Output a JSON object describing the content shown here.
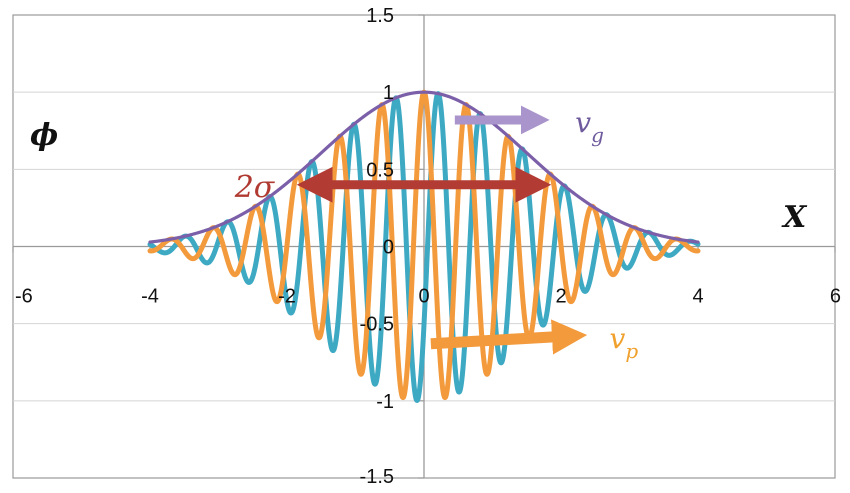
{
  "chart_data": {
    "type": "line",
    "title": "",
    "xlabel": "X",
    "ylabel": "ϕ",
    "xlim": [
      -6,
      6
    ],
    "ylim": [
      -1.5,
      1.5
    ],
    "x_ticks": [
      "-6",
      "-4",
      "-2",
      "0",
      "2",
      "4",
      "6"
    ],
    "y_ticks": [
      "1.5",
      "1",
      "0.5",
      "0",
      "-0.5",
      "-1",
      "-1.5"
    ],
    "grid": true,
    "series": [
      {
        "name": "",
        "kind": "envelope",
        "formula": "exp(-x^2/(2*sigma^2))",
        "sigma": 1.5,
        "x_range": [
          -4,
          4
        ],
        "color": "#7b5fa8"
      },
      {
        "name": "",
        "kind": "carrier-cos",
        "formula": "exp(-x^2/(2*sigma^2))*cos(k*x)",
        "sigma": 1.5,
        "k": 10.2,
        "x_range": [
          -4,
          4
        ],
        "color": "#f39a3c"
      },
      {
        "name": "",
        "kind": "carrier-shifted",
        "formula": "exp(-x^2/(2*sigma^2))*cos(k*x - 2.1)",
        "sigma": 1.5,
        "k": 10.2,
        "x_range": [
          -4,
          4
        ],
        "color": "#3da9c3"
      }
    ],
    "annotations": [
      {
        "name": "group-velocity",
        "text": "v",
        "subscript": "g",
        "arrow_from": [
          0.45,
          0.82
        ],
        "arrow_to": [
          1.8,
          0.82
        ],
        "color": "#a995cb"
      },
      {
        "name": "phase-velocity",
        "text": "v",
        "subscript": "p",
        "arrow_from": [
          0.1,
          -0.63
        ],
        "arrow_to": [
          2.3,
          -0.58
        ],
        "color": "#f39a3c"
      },
      {
        "name": "width",
        "text": "2σ",
        "arrow_from": [
          -1.8,
          0.4
        ],
        "arrow_to": [
          1.8,
          0.4
        ],
        "color": "#b23b34"
      }
    ]
  }
}
